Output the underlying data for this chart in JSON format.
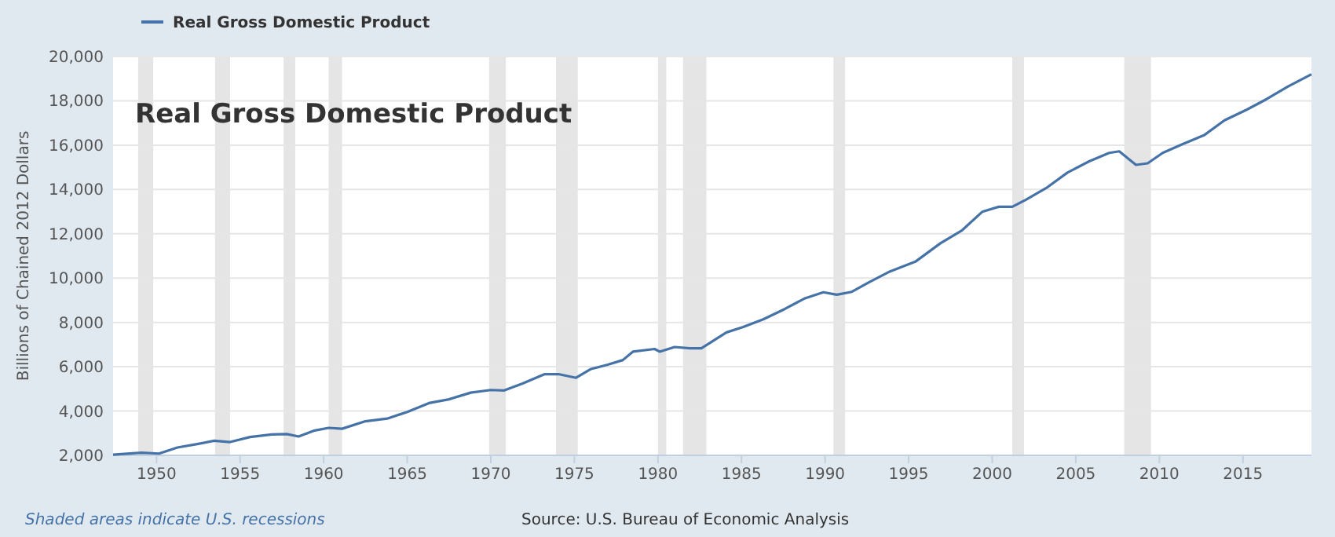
{
  "chart_data": {
    "type": "line",
    "title": "Real Gross Domestic Product",
    "ylabel": "Billions of Chained 2012 Dollars",
    "annotations": [
      "Shaded areas indicate U.S. recessions",
      "Source: U.S. Bureau of Economic Analysis"
    ],
    "legend": "top left",
    "grid": "y",
    "xlim": [
      1947.4,
      2019.1
    ],
    "xticks": [
      1950,
      1955,
      1960,
      1965,
      1970,
      1975,
      1980,
      1985,
      1990,
      1995,
      2000,
      2005,
      2010,
      2015
    ],
    "ylim": [
      2000,
      20000
    ],
    "yticks": [
      {
        "value": 2000,
        "label": "2,000"
      },
      {
        "value": 4000,
        "label": "4,000"
      },
      {
        "value": 6000,
        "label": "6,000"
      },
      {
        "value": 8000,
        "label": "8,000"
      },
      {
        "value": 10000,
        "label": "10,000"
      },
      {
        "value": 12000,
        "label": "12,000"
      },
      {
        "value": 14000,
        "label": "14,000"
      },
      {
        "value": 16000,
        "label": "16,000"
      },
      {
        "value": 18000,
        "label": "18,000"
      },
      {
        "value": 20000,
        "label": "20,000"
      }
    ],
    "bands": [
      {
        "axis": "x",
        "from": 1948.9,
        "to": 1949.8,
        "color": "#e5e5e5"
      },
      {
        "axis": "x",
        "from": 1953.5,
        "to": 1954.4,
        "color": "#e5e5e5"
      },
      {
        "axis": "x",
        "from": 1957.6,
        "to": 1958.3,
        "color": "#e5e5e5"
      },
      {
        "axis": "x",
        "from": 1960.3,
        "to": 1961.1,
        "color": "#e5e5e5"
      },
      {
        "axis": "x",
        "from": 1969.9,
        "to": 1970.9,
        "color": "#e5e5e5"
      },
      {
        "axis": "x",
        "from": 1973.9,
        "to": 1975.2,
        "color": "#e5e5e5"
      },
      {
        "axis": "x",
        "from": 1980.0,
        "to": 1980.5,
        "color": "#e5e5e5"
      },
      {
        "axis": "x",
        "from": 1981.5,
        "to": 1982.9,
        "color": "#e5e5e5"
      },
      {
        "axis": "x",
        "from": 1990.5,
        "to": 1991.2,
        "color": "#e5e5e5"
      },
      {
        "axis": "x",
        "from": 2001.2,
        "to": 2001.9,
        "color": "#e5e5e5"
      },
      {
        "axis": "x",
        "from": 2007.9,
        "to": 2009.5,
        "color": "#e5e5e5"
      }
    ],
    "series": [
      {
        "name": "Real Gross Domestic Product",
        "color": "#4572a7",
        "x": [
          1947.4,
          1949.1,
          1950.15,
          1951.25,
          1952.5,
          1953.45,
          1954.4,
          1955.6,
          1956.9,
          1957.8,
          1958.5,
          1959.4,
          1960.3,
          1961.1,
          1962.5,
          1963.8,
          1965.0,
          1966.3,
          1967.5,
          1968.8,
          1970.0,
          1970.8,
          1971.9,
          1973.2,
          1974.1,
          1975.1,
          1976.0,
          1977.0,
          1977.9,
          1978.5,
          1979.8,
          1980.1,
          1981.0,
          1981.9,
          1982.6,
          1984.1,
          1985.1,
          1986.3,
          1987.6,
          1988.8,
          1989.9,
          1990.7,
          1991.6,
          1992.6,
          1993.8,
          1995.4,
          1996.9,
          1998.2,
          1999.4,
          2000.4,
          2001.2,
          2002.0,
          2003.3,
          2004.5,
          2005.8,
          2007.0,
          2007.6,
          2008.6,
          2009.3,
          2010.2,
          2011.4,
          2012.7,
          2013.9,
          2015.2,
          2016.4,
          2017.7,
          2019.1
        ],
        "values": [
          2030,
          2120,
          2080,
          2355,
          2520,
          2660,
          2600,
          2830,
          2945,
          2960,
          2850,
          3110,
          3240,
          3200,
          3540,
          3660,
          3960,
          4360,
          4530,
          4830,
          4950,
          4930,
          5240,
          5660,
          5660,
          5500,
          5900,
          6090,
          6300,
          6680,
          6800,
          6680,
          6890,
          6830,
          6830,
          7550,
          7790,
          8140,
          8610,
          9090,
          9360,
          9250,
          9380,
          9800,
          10270,
          10740,
          11570,
          12160,
          12990,
          13220,
          13220,
          13530,
          14100,
          14760,
          15270,
          15650,
          15720,
          15110,
          15180,
          15650,
          16050,
          16460,
          17120,
          17590,
          18070,
          18650,
          19200
        ]
      }
    ]
  }
}
